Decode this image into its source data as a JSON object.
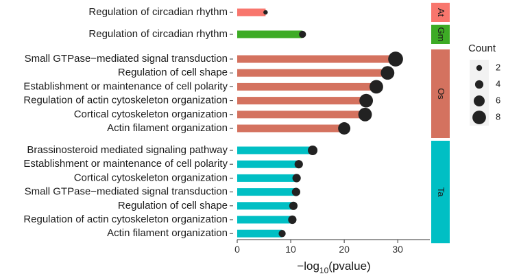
{
  "chart_data": {
    "type": "bar",
    "xlabel_prefix": "−log",
    "xlabel_sub": "10",
    "xlabel_suffix": "(pvalue)",
    "xlim": [
      0,
      36
    ],
    "xticks": [
      "0",
      "10",
      "20",
      "30"
    ],
    "xtick_values": [
      0,
      10,
      20,
      30
    ],
    "legend": {
      "title": "Count",
      "sizes": [
        2,
        4,
        6,
        8
      ],
      "labels": [
        "2",
        "4",
        "6",
        "8"
      ]
    },
    "colors": {
      "At": "#f8766d",
      "Gm": "#3dab25",
      "Os": "#d4725f",
      "Ta": "#00bfc4",
      "point": "#222222"
    },
    "panels": [
      {
        "name": "At",
        "rows": [
          {
            "term": "Regulation of circadian rhythm",
            "value": 5.3,
            "count": 1
          }
        ]
      },
      {
        "name": "Gm",
        "rows": [
          {
            "term": "Regulation of circadian rhythm",
            "value": 12.2,
            "count": 3
          }
        ]
      },
      {
        "name": "Os",
        "rows": [
          {
            "term": "Small GTPase−mediated signal transduction",
            "value": 29.6,
            "count": 9
          },
          {
            "term": "Regulation of cell shape",
            "value": 28.1,
            "count": 8
          },
          {
            "term": "Establishment or maintenance of cell polarity",
            "value": 26.0,
            "count": 8
          },
          {
            "term": "Regulation of actin cytoskeleton organization",
            "value": 24.1,
            "count": 8
          },
          {
            "term": "Cortical cytoskeleton organization",
            "value": 23.9,
            "count": 8
          },
          {
            "term": "Actin filament organization",
            "value": 20.0,
            "count": 7
          }
        ]
      },
      {
        "name": "Ta",
        "rows": [
          {
            "term": "Brassinosteroid mediated signaling pathway",
            "value": 14.1,
            "count": 5
          },
          {
            "term": "Establishment or maintenance of cell polarity",
            "value": 11.5,
            "count": 4
          },
          {
            "term": "Cortical cytoskeleton organization",
            "value": 11.1,
            "count": 4
          },
          {
            "term": "Small GTPase−mediated signal transduction",
            "value": 11.0,
            "count": 4
          },
          {
            "term": "Regulation of cell shape",
            "value": 10.5,
            "count": 4
          },
          {
            "term": "Regulation of actin cytoskeleton organization",
            "value": 10.3,
            "count": 4
          },
          {
            "term": "Actin filament organization",
            "value": 8.4,
            "count": 3
          }
        ]
      }
    ]
  }
}
